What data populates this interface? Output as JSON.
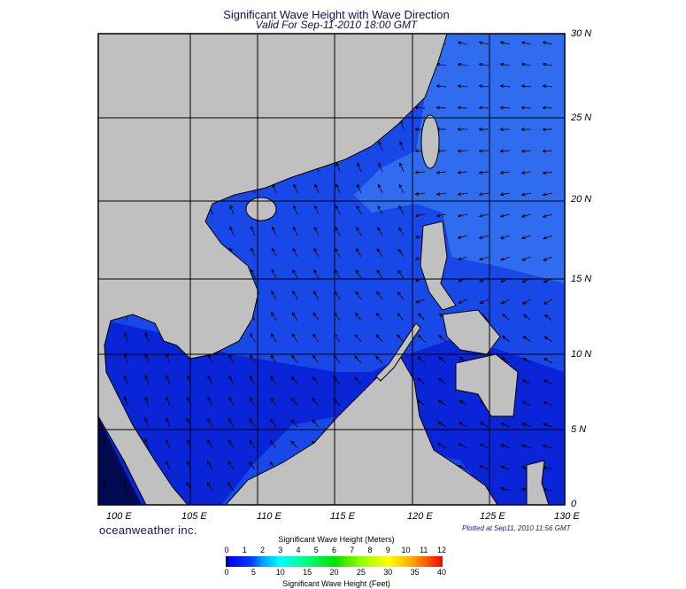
{
  "title": "Significant Wave Height with Wave Direction",
  "subtitle": "Valid For Sep-11-2010 18:00 GMT",
  "longitude_labels": [
    "100 E",
    "105 E",
    "110 E",
    "115 E",
    "120 E",
    "125 E",
    "130 E"
  ],
  "latitude_labels": [
    "30 N",
    "25 N",
    "20 N",
    "15 N",
    "10 N",
    "5 N",
    "0"
  ],
  "brand": "oceanweather inc.",
  "plotted_at": "Plotted at Sep11, 2010 11:56 GMT",
  "legend": {
    "meters_title": "Significant Wave Height (Meters)",
    "meters_ticks": [
      "0",
      "1",
      "2",
      "3",
      "4",
      "5",
      "6",
      "7",
      "8",
      "9",
      "10",
      "11",
      "12"
    ],
    "feet_title": "Significant Wave Height (Feet)",
    "feet_ticks": [
      "0",
      "5",
      "10",
      "15",
      "20",
      "25",
      "30",
      "35",
      "40"
    ],
    "colors": [
      "#000000",
      "#0000ff",
      "#00ffff",
      "#00e000",
      "#ffff00",
      "#ff0000"
    ]
  },
  "colors": {
    "land": "#c0c0c0",
    "sea_low": "#0a20d8",
    "sea_mid": "#1848e8",
    "sea_high": "#2f6cf0"
  }
}
